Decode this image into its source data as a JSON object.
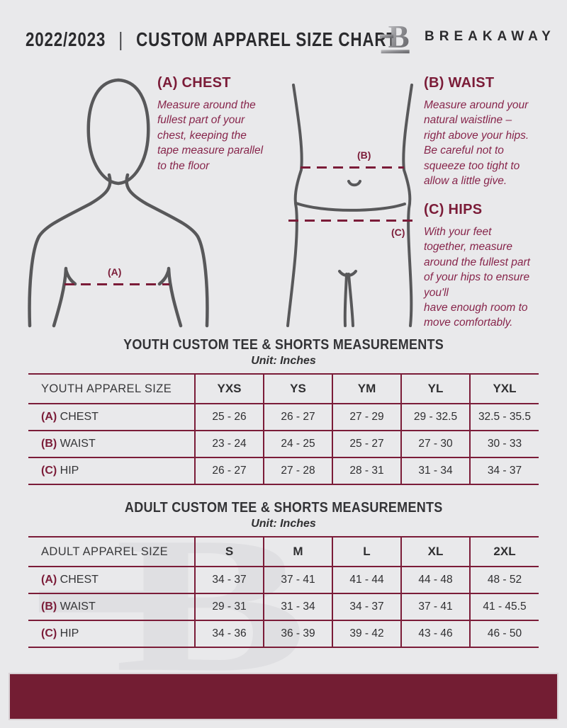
{
  "colors": {
    "background": "#e9e9eb",
    "accent": "#7b1c38",
    "body_text": "#87254b",
    "footer_bar": "#731d33",
    "figure_outline": "#58585a",
    "watermark": "#dfdfe2"
  },
  "header": {
    "year": "2022/2023",
    "separator": "|",
    "title": "CUSTOM APPAREL SIZE CHART",
    "brand": "BREAKAWAY",
    "logo_icon": "breakaway-b-logo"
  },
  "measure_guide": {
    "point_labels": {
      "a": "(A)",
      "b": "(B)",
      "c": "(C)"
    },
    "sections": [
      {
        "heading": "(A) CHEST",
        "body": "Measure around the\nfullest part of your\nchest, keeping the\ntape measure parallel\nto the floor"
      },
      {
        "heading": "(B) WAIST",
        "body": "Measure around your\nnatural waistline –\nright above your hips.\nBe careful not to\nsqueeze too tight to\nallow a little give."
      },
      {
        "heading": "(C) HIPS",
        "body": "With your feet\ntogether, measure\naround the fullest part\nof your hips to ensure\nyou'll\nhave enough room to\nmove comfortably."
      }
    ]
  },
  "youth_table": {
    "title": "YOUTH CUSTOM TEE & SHORTS MEASUREMENTS",
    "unit": "Unit: Inches",
    "header": [
      "YOUTH APPAREL SIZE",
      "YXS",
      "YS",
      "YM",
      "YL",
      "YXL"
    ],
    "rows": [
      {
        "prefix": "(A)",
        "label": "CHEST",
        "values": [
          "25 - 26",
          "26 - 27",
          "27 - 29",
          "29 - 32.5",
          "32.5 - 35.5"
        ]
      },
      {
        "prefix": "(B)",
        "label": "WAIST",
        "values": [
          "23 - 24",
          "24 - 25",
          "25 - 27",
          "27 - 30",
          "30 - 33"
        ]
      },
      {
        "prefix": "(C)",
        "label": "HIP",
        "values": [
          "26 - 27",
          "27 - 28",
          "28 - 31",
          "31 - 34",
          "34 - 37"
        ]
      }
    ]
  },
  "adult_table": {
    "title": "ADULT CUSTOM TEE & SHORTS MEASUREMENTS",
    "unit": "Unit: Inches",
    "header": [
      "ADULT APPAREL SIZE",
      "S",
      "M",
      "L",
      "XL",
      "2XL"
    ],
    "rows": [
      {
        "prefix": "(A)",
        "label": "CHEST",
        "values": [
          "34 - 37",
          "37 - 41",
          "41 - 44",
          "44 - 48",
          "48 - 52"
        ]
      },
      {
        "prefix": "(B)",
        "label": "WAIST",
        "values": [
          "29 - 31",
          "31 - 34",
          "34 - 37",
          "37 - 41",
          "41 - 45.5"
        ]
      },
      {
        "prefix": "(C)",
        "label": "HIP",
        "values": [
          "34 - 36",
          "36 - 39",
          "39 - 42",
          "43 - 46",
          "46 - 50"
        ]
      }
    ]
  }
}
